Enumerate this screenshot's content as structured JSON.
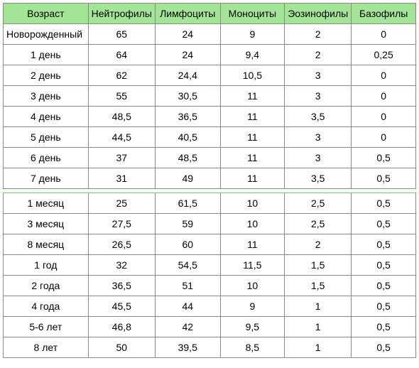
{
  "table": {
    "columns": [
      "Возраст",
      "Нейтрофилы",
      "Лимфоциты",
      "Моноциты",
      "Эозинофилы",
      "Базофилы"
    ],
    "groups": [
      {
        "rows": [
          {
            "age": "Новорожденный",
            "values": [
              "65",
              "24",
              "9",
              "2",
              "0"
            ]
          },
          {
            "age": "1 день",
            "values": [
              "64",
              "24",
              "9,4",
              "2",
              "0,25"
            ]
          },
          {
            "age": "2 день",
            "values": [
              "62",
              "24,4",
              "10,5",
              "3",
              "0"
            ]
          },
          {
            "age": "3 день",
            "values": [
              "55",
              "30,5",
              "11",
              "3",
              "0"
            ]
          },
          {
            "age": "4 день",
            "values": [
              "48,5",
              "36,5",
              "11",
              "3,5",
              "0"
            ]
          },
          {
            "age": "5 день",
            "values": [
              "44,5",
              "40,5",
              "11",
              "3",
              "0"
            ]
          },
          {
            "age": "6 день",
            "values": [
              "37",
              "48,5",
              "11",
              "3",
              "0,5"
            ]
          },
          {
            "age": "7 день",
            "values": [
              "31",
              "49",
              "11",
              "3,5",
              "0,5"
            ]
          }
        ]
      },
      {
        "rows": [
          {
            "age": "1 месяц",
            "values": [
              "25",
              "61,5",
              "10",
              "2,5",
              "0,5"
            ]
          },
          {
            "age": "3 месяц",
            "values": [
              "27,5",
              "59",
              "10",
              "2,5",
              "0,5"
            ]
          },
          {
            "age": "8 месяц",
            "values": [
              "26,5",
              "60",
              "11",
              "2",
              "0,5"
            ]
          },
          {
            "age": "1 год",
            "values": [
              "32",
              "54,5",
              "11,5",
              "1,5",
              "0,5"
            ]
          },
          {
            "age": "2 года",
            "values": [
              "36,5",
              "51",
              "10",
              "1,5",
              "0,5"
            ]
          },
          {
            "age": "4 года",
            "values": [
              "45,5",
              "44",
              "9",
              "1",
              "0,5"
            ]
          },
          {
            "age": "5-6 лет",
            "values": [
              "46,8",
              "42",
              "9,5",
              "1",
              "0,5"
            ]
          },
          {
            "age": "8 лет",
            "values": [
              "50",
              "39,5",
              "8,5",
              "1",
              "0,5"
            ]
          }
        ]
      }
    ],
    "header_bg": "#a2e595",
    "border_color": "#888888"
  }
}
